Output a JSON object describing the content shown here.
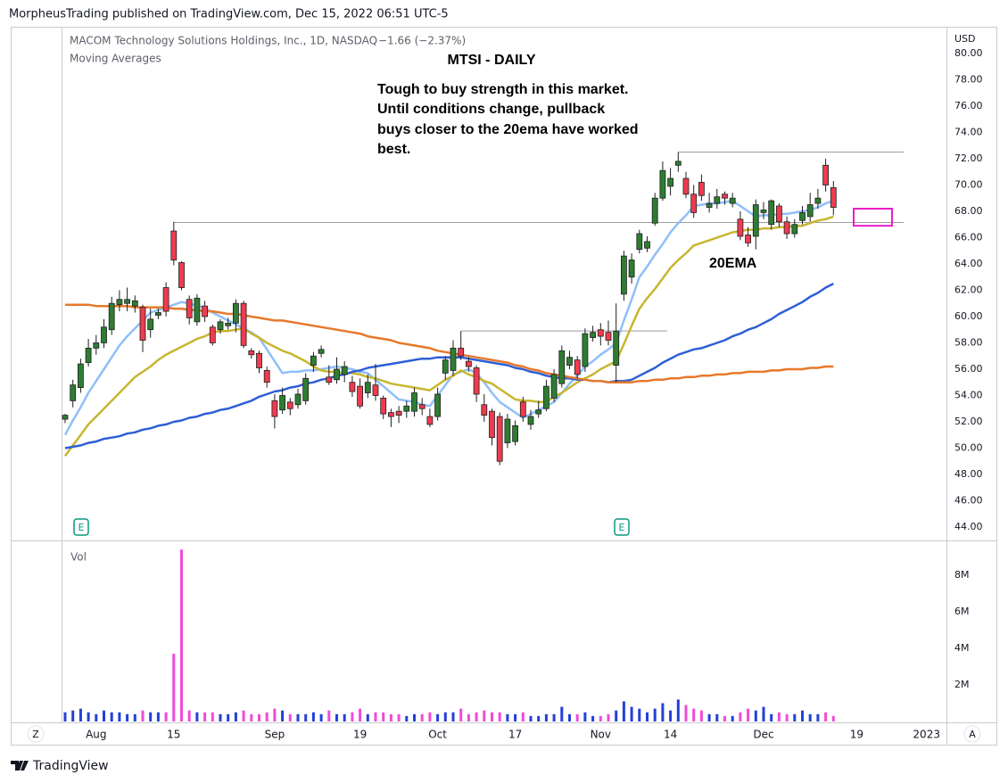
{
  "header": {
    "publisher": "MorpheusTrading published on TradingView.com, Dec 15, 2022 06:51 UTC-5",
    "brand": "TradingView"
  },
  "chart_data": {
    "type": "candlestick",
    "legend": {
      "symbol": "MACOM Technology Solutions Holdings, Inc., 1D, NASDAQ",
      "change": "−1.66 (−2.37%)",
      "indicator": "Moving Averages"
    },
    "title": "MTSI - DAILY",
    "annotation": [
      "Tough to buy strength in this market.",
      "Until conditions change, pullback",
      "buys closer to the 20ema have worked",
      "best."
    ],
    "ma_label": "20EMA",
    "currency": "USD",
    "buttons": [
      "Z",
      "A"
    ],
    "earnings_markers": [
      "E",
      "E"
    ],
    "categories": [
      null,
      null,
      null,
      null,
      "Aug",
      null,
      null,
      null,
      null,
      null,
      null,
      null,
      null,
      null,
      "15",
      null,
      null,
      null,
      null,
      null,
      null,
      null,
      null,
      null,
      null,
      null,
      null,
      "Sep",
      null,
      null,
      null,
      null,
      null,
      null,
      null,
      null,
      null,
      null,
      "19",
      null,
      null,
      null,
      null,
      null,
      null,
      null,
      null,
      null,
      "Oct",
      null,
      null,
      null,
      null,
      null,
      null,
      null,
      null,
      null,
      "17",
      null,
      null,
      null,
      null,
      null,
      null,
      null,
      null,
      null,
      null,
      "Nov",
      null,
      null,
      null,
      null,
      null,
      null,
      null,
      null,
      "14",
      null,
      null,
      null,
      null,
      null,
      null,
      null,
      null,
      null,
      null,
      null,
      "Dec",
      null,
      null,
      null,
      null,
      null,
      null,
      null,
      null,
      null,
      null,
      null,
      "19",
      null,
      null,
      null,
      null,
      null,
      null,
      null,
      null,
      "2023"
    ],
    "colors": {
      "up": "#2e7d32",
      "down": "#ef3b4f",
      "outline": "#1f1f1f"
    },
    "open": [
      52.2,
      53.6,
      54.6,
      56.5,
      57.6,
      58.0,
      59.0,
      60.9,
      61.0,
      60.8,
      60.7,
      59.0,
      60.1,
      62.2,
      66.5,
      64.1,
      61.3,
      59.6,
      60.8,
      59.2,
      59.0,
      59.3,
      59.5,
      61.0,
      57.4,
      57.2,
      55.9,
      53.6,
      52.9,
      53.5,
      53.3,
      53.6,
      56.3,
      57.2,
      55.4,
      55.2,
      55.6,
      55.0,
      54.7,
      54.2,
      54.8,
      53.8,
      52.7,
      52.8,
      52.8,
      52.8,
      53.3,
      52.4,
      52.4,
      55.7,
      55.9,
      57.6,
      56.6,
      56.1,
      53.3,
      52.8,
      52.4,
      50.4,
      50.5,
      53.5,
      51.8,
      52.6,
      53.0,
      53.8,
      54.9,
      56.3,
      56.7,
      56.2,
      58.4,
      59.0,
      58.8,
      56.3,
      61.7,
      63.0,
      65.1,
      65.2,
      67.1,
      69.0,
      69.9,
      71.5,
      70.5,
      69.3,
      70.2,
      68.3,
      68.6,
      69.3,
      68.6,
      67.4,
      66.2,
      66.1,
      67.9,
      67.0,
      68.4,
      67.2,
      66.3,
      67.3,
      67.6,
      68.6,
      71.5,
      69.8,
      null,
      null,
      null,
      null,
      null,
      null,
      null,
      null,
      null,
      null,
      null,
      null
    ],
    "high": [
      52.6,
      55.2,
      56.8,
      58.3,
      58.6,
      59.8,
      61.5,
      62.0,
      62.2,
      61.6,
      60.9,
      60.6,
      60.6,
      62.6,
      67.2,
      64.2,
      61.6,
      61.7,
      61.2,
      59.4,
      59.8,
      59.9,
      61.3,
      61.2,
      57.6,
      57.4,
      56.2,
      54.1,
      54.6,
      53.8,
      54.5,
      55.7,
      57.3,
      57.8,
      56.3,
      56.9,
      56.6,
      55.5,
      55.3,
      55.6,
      56.4,
      54.0,
      53.0,
      53.2,
      53.6,
      54.6,
      53.8,
      53.0,
      54.6,
      57.0,
      58.2,
      58.9,
      56.9,
      56.3,
      54.1,
      53.0,
      52.7,
      52.6,
      52.1,
      53.9,
      52.9,
      53.6,
      55.2,
      56.0,
      57.8,
      57.4,
      57.0,
      59.1,
      59.3,
      59.5,
      59.7,
      61.0,
      65.0,
      64.8,
      66.6,
      66.1,
      69.4,
      71.8,
      71.3,
      72.5,
      71.0,
      70.0,
      70.8,
      69.4,
      69.7,
      69.5,
      69.4,
      68.0,
      66.8,
      68.9,
      68.7,
      68.9,
      68.6,
      67.6,
      67.4,
      68.4,
      69.4,
      69.7,
      72.0,
      70.3,
      null,
      null,
      null,
      null,
      null,
      null,
      null,
      null,
      null,
      null,
      null,
      null
    ],
    "low": [
      51.9,
      53.1,
      54.2,
      56.2,
      57.1,
      57.6,
      58.6,
      60.4,
      60.4,
      60.3,
      57.3,
      58.4,
      59.8,
      60.0,
      63.9,
      62.0,
      59.4,
      59.3,
      59.6,
      57.8,
      58.7,
      59.0,
      58.8,
      57.6,
      56.8,
      55.7,
      54.6,
      51.5,
      52.6,
      52.5,
      53.0,
      53.3,
      55.8,
      56.9,
      54.8,
      54.9,
      55.0,
      53.9,
      53.0,
      53.8,
      53.6,
      52.2,
      51.6,
      51.9,
      52.3,
      52.4,
      52.5,
      51.6,
      52.1,
      55.2,
      55.5,
      56.7,
      55.8,
      53.5,
      52.0,
      50.2,
      48.7,
      50.0,
      50.2,
      52.0,
      51.4,
      52.3,
      52.8,
      53.5,
      54.6,
      56.0,
      55.3,
      55.8,
      58.1,
      57.8,
      57.8,
      55.0,
      61.2,
      62.5,
      64.8,
      64.9,
      66.9,
      68.8,
      69.2,
      71.0,
      69.0,
      67.5,
      68.8,
      67.9,
      68.2,
      68.5,
      68.3,
      65.8,
      65.3,
      65.1,
      67.4,
      66.6,
      66.8,
      65.9,
      66.0,
      67.0,
      67.2,
      68.2,
      69.5,
      67.7,
      null,
      null,
      null,
      null,
      null,
      null,
      null,
      null,
      null,
      null,
      null,
      null
    ],
    "close": [
      52.5,
      54.8,
      56.4,
      57.6,
      58.0,
      59.2,
      61.0,
      61.3,
      61.3,
      61.2,
      58.2,
      59.8,
      60.3,
      60.4,
      64.3,
      62.2,
      59.9,
      61.4,
      60.0,
      58.0,
      59.6,
      59.5,
      61.0,
      57.8,
      57.1,
      56.1,
      55.0,
      52.4,
      54.0,
      53.0,
      54.1,
      55.3,
      57.0,
      57.5,
      55.0,
      56.0,
      56.2,
      54.3,
      53.2,
      55.0,
      54.0,
      52.6,
      52.4,
      52.5,
      53.2,
      54.2,
      53.0,
      51.8,
      54.1,
      56.7,
      57.6,
      57.0,
      56.2,
      54.1,
      52.5,
      50.8,
      49.0,
      52.2,
      51.7,
      52.4,
      52.4,
      52.9,
      54.7,
      55.6,
      57.4,
      56.9,
      55.6,
      58.7,
      58.8,
      58.5,
      58.2,
      58.9,
      64.6,
      64.3,
      66.3,
      65.7,
      69.0,
      71.1,
      70.5,
      71.8,
      69.3,
      67.9,
      69.2,
      68.6,
      69.1,
      69.0,
      69.0,
      66.1,
      65.6,
      68.5,
      68.1,
      68.8,
      67.2,
      66.3,
      67.0,
      67.9,
      68.5,
      69.0,
      70.0,
      68.3,
      null,
      null,
      null,
      null,
      null,
      null,
      null,
      null,
      null,
      null,
      null,
      null
    ],
    "moving_averages": [
      {
        "color": "#90bff9",
        "values": [
          51.0,
          52.1,
          53.1,
          54.2,
          55.1,
          56.0,
          56.9,
          57.8,
          58.5,
          59.1,
          59.7,
          60.3,
          60.5,
          60.7,
          60.9,
          61.1,
          61.0,
          60.8,
          60.7,
          60.3,
          60.0,
          59.7,
          59.4,
          59.1,
          58.8,
          58.4,
          57.5,
          56.6,
          55.7,
          55.8,
          55.8,
          55.9,
          55.9,
          56.0,
          56.1,
          56.2,
          56.1,
          56.0,
          55.8,
          55.7,
          55.2,
          54.7,
          54.2,
          53.7,
          53.6,
          53.5,
          53.3,
          53.2,
          54.0,
          54.8,
          55.6,
          55.8,
          56.0,
          55.7,
          55.0,
          54.2,
          53.5,
          53.1,
          52.7,
          52.3,
          52.6,
          52.9,
          53.2,
          53.5,
          54.2,
          54.9,
          55.5,
          56.2,
          56.6,
          57.1,
          57.5,
          58.0,
          59.7,
          61.3,
          63.0,
          63.8,
          64.7,
          65.5,
          66.4,
          67.1,
          67.7,
          68.4,
          68.5,
          68.6,
          68.6,
          68.7,
          68.8,
          68.4,
          68.0,
          67.6,
          67.7,
          67.7,
          67.8,
          67.8,
          67.9,
          68.0,
          68.1,
          68.3,
          68.6,
          68.8,
          null,
          null,
          null,
          null,
          null,
          null,
          null,
          null,
          null,
          null,
          null,
          null
        ]
      },
      {
        "color": "#c8b630",
        "values": [
          49.4,
          50.2,
          51.0,
          51.8,
          52.4,
          53.0,
          53.6,
          54.2,
          54.8,
          55.4,
          55.8,
          56.2,
          56.7,
          57.1,
          57.4,
          57.7,
          58.0,
          58.3,
          58.5,
          58.8,
          58.9,
          58.9,
          59.0,
          59.1,
          58.7,
          58.4,
          58.0,
          57.7,
          57.4,
          57.2,
          56.9,
          56.6,
          56.2,
          55.9,
          55.8,
          55.8,
          55.7,
          55.7,
          55.6,
          55.4,
          55.3,
          55.1,
          54.9,
          54.8,
          54.7,
          54.6,
          54.5,
          54.4,
          54.8,
          55.2,
          55.5,
          55.9,
          55.6,
          55.4,
          55.1,
          54.9,
          54.5,
          54.1,
          53.7,
          53.6,
          53.6,
          53.5,
          53.5,
          53.9,
          54.2,
          54.6,
          55.0,
          55.3,
          55.6,
          56.0,
          56.3,
          56.6,
          57.9,
          59.3,
          60.6,
          61.4,
          62.1,
          62.9,
          63.7,
          64.3,
          64.8,
          65.4,
          65.6,
          65.8,
          66.0,
          66.2,
          66.4,
          66.5,
          66.6,
          66.6,
          66.7,
          66.7,
          66.8,
          66.8,
          66.9,
          66.9,
          67.1,
          67.3,
          67.4,
          67.6,
          null,
          null,
          null,
          null,
          null,
          null,
          null,
          null,
          null,
          null,
          null,
          null
        ]
      },
      {
        "color": "#2f5fd6",
        "values": [
          50.0,
          50.1,
          50.2,
          50.4,
          50.5,
          50.7,
          50.8,
          50.9,
          51.1,
          51.2,
          51.4,
          51.5,
          51.7,
          51.8,
          52.0,
          52.1,
          52.3,
          52.4,
          52.6,
          52.7,
          52.9,
          53.0,
          53.2,
          53.4,
          53.6,
          53.9,
          54.1,
          54.3,
          54.4,
          54.6,
          54.7,
          54.9,
          55.0,
          55.2,
          55.3,
          55.5,
          55.6,
          55.8,
          55.9,
          56.1,
          56.2,
          56.3,
          56.4,
          56.5,
          56.6,
          56.7,
          56.8,
          56.8,
          56.9,
          56.9,
          56.9,
          56.9,
          56.8,
          56.7,
          56.6,
          56.5,
          56.4,
          56.3,
          56.1,
          56.0,
          55.8,
          55.7,
          55.5,
          55.4,
          55.3,
          55.3,
          55.2,
          55.2,
          55.1,
          55.1,
          55.0,
          55.1,
          55.1,
          55.2,
          55.5,
          55.8,
          56.1,
          56.5,
          56.8,
          57.1,
          57.3,
          57.5,
          57.6,
          57.8,
          58.0,
          58.2,
          58.5,
          58.7,
          59.0,
          59.2,
          59.5,
          59.8,
          60.2,
          60.5,
          60.8,
          61.1,
          61.5,
          61.8,
          62.2,
          62.5,
          null,
          null,
          null,
          null,
          null,
          null,
          null,
          null,
          null,
          null,
          null,
          null
        ]
      },
      {
        "color": "#e8782a",
        "values": [
          60.9,
          60.9,
          60.9,
          60.9,
          60.8,
          60.8,
          60.8,
          60.8,
          60.8,
          60.7,
          60.7,
          60.7,
          60.7,
          60.7,
          60.6,
          60.6,
          60.5,
          60.5,
          60.4,
          60.4,
          60.3,
          60.2,
          60.2,
          60.1,
          60.0,
          59.9,
          59.8,
          59.7,
          59.7,
          59.6,
          59.5,
          59.4,
          59.3,
          59.2,
          59.1,
          59.0,
          58.9,
          58.8,
          58.7,
          58.5,
          58.4,
          58.3,
          58.2,
          58.0,
          57.9,
          57.8,
          57.7,
          57.6,
          57.4,
          57.3,
          57.2,
          57.1,
          57.0,
          56.9,
          56.8,
          56.7,
          56.6,
          56.5,
          56.3,
          56.2,
          56.0,
          55.9,
          55.7,
          55.6,
          55.5,
          55.4,
          55.3,
          55.2,
          55.1,
          55.1,
          55.0,
          55.0,
          55.0,
          55.0,
          55.1,
          55.1,
          55.2,
          55.2,
          55.3,
          55.3,
          55.4,
          55.4,
          55.5,
          55.5,
          55.6,
          55.6,
          55.7,
          55.7,
          55.8,
          55.8,
          55.8,
          55.9,
          55.9,
          56.0,
          56.0,
          56.0,
          56.1,
          56.1,
          56.2,
          56.2,
          null,
          null,
          null,
          null,
          null,
          null,
          null,
          null,
          null,
          null,
          null,
          null
        ]
      }
    ],
    "levels": [
      {
        "value": 67.15,
        "color": "#9e9e9e"
      },
      {
        "value": 72.5,
        "color": "#9e9e9e"
      },
      {
        "value": 58.9,
        "color": "#9e9e9e"
      }
    ],
    "box": {
      "top": 68.2,
      "bottom": 66.9,
      "color": "#e91ec8"
    },
    "ylim": [
      43.05,
      81.96
    ],
    "yticks": [
      {
        "value": 44,
        "label": "44.00"
      },
      {
        "value": 46,
        "label": "46.00"
      },
      {
        "value": 48,
        "label": "48.00"
      },
      {
        "value": 50,
        "label": "50.00"
      },
      {
        "value": 52,
        "label": "52.00"
      },
      {
        "value": 54,
        "label": "54.00"
      },
      {
        "value": 56,
        "label": "56.00"
      },
      {
        "value": 58,
        "label": "58.00"
      },
      {
        "value": 60,
        "label": "60.00"
      },
      {
        "value": 62,
        "label": "62.00"
      },
      {
        "value": 64,
        "label": "64.00"
      },
      {
        "value": 66,
        "label": "66.00"
      },
      {
        "value": 68,
        "label": "68.00"
      },
      {
        "value": 70,
        "label": "70.00"
      },
      {
        "value": 72,
        "label": "72.00"
      },
      {
        "value": 74,
        "label": "74.00"
      },
      {
        "value": 76,
        "label": "76.00"
      },
      {
        "value": 78,
        "label": "78.00"
      },
      {
        "value": 80,
        "label": "80.00"
      }
    ],
    "grid": false,
    "volume": {
      "label": "Vol",
      "up_color": "#2340d8",
      "down_color": "#f04bd8",
      "values": [
        0.5,
        0.6,
        0.7,
        0.5,
        0.4,
        0.6,
        0.5,
        0.5,
        0.4,
        0.4,
        0.6,
        0.5,
        0.5,
        0.5,
        3.7,
        9.4,
        0.6,
        0.5,
        0.5,
        0.5,
        0.4,
        0.4,
        0.5,
        0.6,
        0.4,
        0.4,
        0.5,
        0.7,
        0.6,
        0.4,
        0.4,
        0.4,
        0.5,
        0.4,
        0.6,
        0.4,
        0.4,
        0.5,
        0.7,
        0.4,
        0.5,
        0.5,
        0.4,
        0.4,
        0.3,
        0.4,
        0.4,
        0.5,
        0.4,
        0.5,
        0.5,
        0.7,
        0.4,
        0.5,
        0.6,
        0.5,
        0.5,
        0.4,
        0.4,
        0.5,
        0.3,
        0.3,
        0.4,
        0.4,
        0.8,
        0.4,
        0.4,
        0.5,
        0.3,
        0.3,
        0.4,
        0.6,
        1.1,
        0.8,
        0.7,
        0.5,
        0.7,
        1.0,
        0.6,
        1.2,
        0.9,
        0.7,
        0.6,
        0.4,
        0.4,
        0.3,
        0.3,
        0.5,
        0.7,
        0.6,
        0.8,
        0.4,
        0.5,
        0.4,
        0.4,
        0.6,
        0.4,
        0.4,
        0.5,
        0.3,
        null,
        null,
        null,
        null,
        null,
        null,
        null,
        null,
        null,
        null,
        null,
        null
      ],
      "ylim": [
        0,
        9.85
      ],
      "yticks": [
        {
          "value": 2,
          "label": "2M"
        },
        {
          "value": 4,
          "label": "4M"
        },
        {
          "value": 6,
          "label": "6M"
        },
        {
          "value": 8,
          "label": "8M"
        }
      ]
    }
  }
}
